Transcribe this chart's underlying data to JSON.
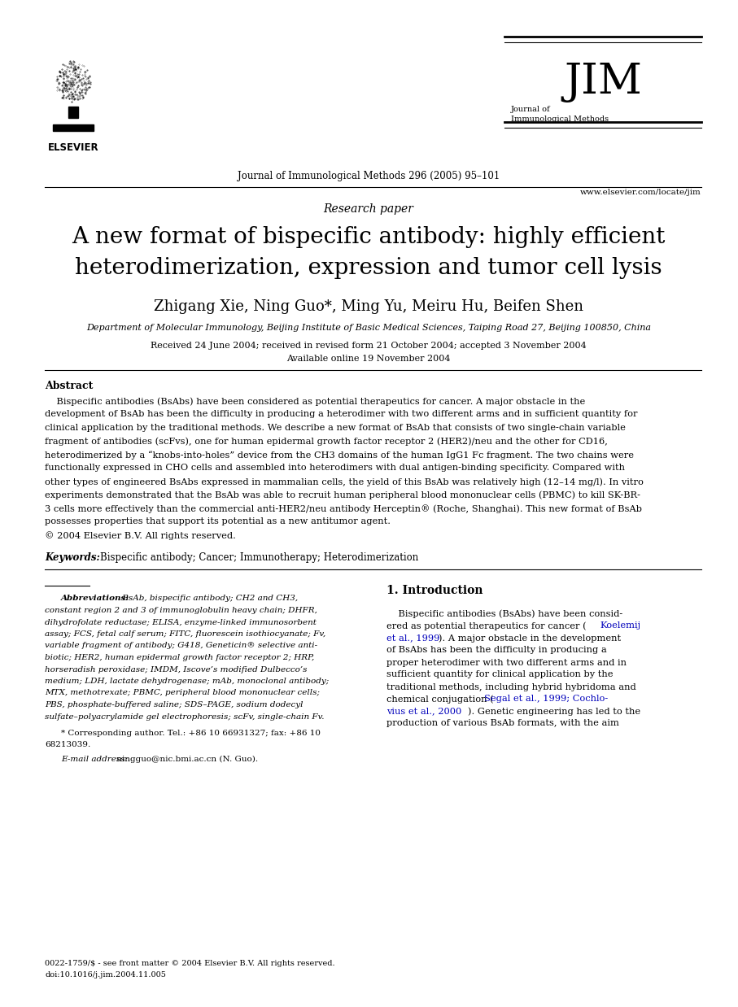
{
  "background_color": "#ffffff",
  "page_width": 9.07,
  "page_height": 12.38,
  "dpi": 100,
  "journal_line": "Journal of Immunological Methods 296 (2005) 95–101",
  "journal_url": "www.elsevier.com/locate/jim",
  "jim_subtitle": "Journal of\nImmunological Methods",
  "elsevier_text": "ELSEVIER",
  "paper_type": "Research paper",
  "title_line1": "A new format of bispecific antibody: highly efficient",
  "title_line2": "heterodimerization, expression and tumor cell lysis",
  "authors": "Zhigang Xie, Ning Guo*, Ming Yu, Meiru Hu, Beifen Shen",
  "affiliation": "Department of Molecular Immunology, Beijing Institute of Basic Medical Sciences, Taiping Road 27, Beijing 100850, China",
  "received": "Received 24 June 2004; received in revised form 21 October 2004; accepted 3 November 2004",
  "available": "Available online 19 November 2004",
  "abstract_title": "Abstract",
  "keywords_label": "Keywords:",
  "keywords_text": "Bispecific antibody; Cancer; Immunotherapy; Heterodimerization",
  "abbrev_label": "Abbreviations:",
  "corresp_text": "* Corresponding author. Tel.: +86 10 66931327; fax: +86 10\n68213039.",
  "email_label": "E-mail address:",
  "email_text": " ningguo@nic.bmi.ac.cn (N. Guo).",
  "issn_text": "0022-1759/$ - see front matter © 2004 Elsevier B.V. All rights reserved.",
  "doi_text": "doi:10.1016/j.jim.2004.11.005",
  "intro_title": "1. Introduction"
}
